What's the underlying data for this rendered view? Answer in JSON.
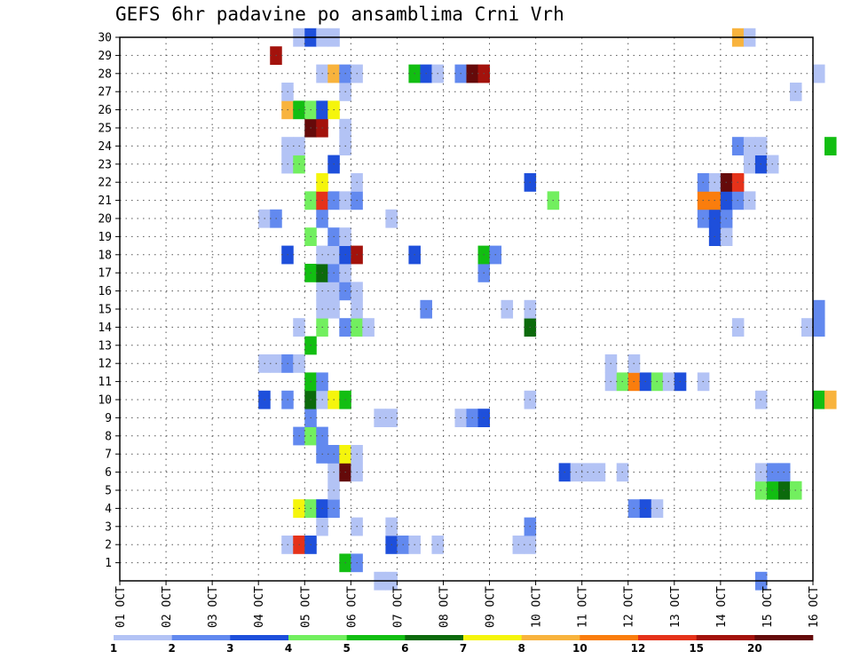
{
  "chart_data": {
    "type": "heatmap",
    "title": "GEFS 6hr padavine po ansamblima Crni Vrh",
    "xlabel": "",
    "ylabel": "",
    "x_ticks": [
      "01 OCT",
      "02 OCT",
      "03 OCT",
      "04 OCT",
      "05 OCT",
      "06 OCT",
      "07 OCT",
      "08 OCT",
      "09 OCT",
      "10 OCT",
      "11 OCT",
      "12 OCT",
      "13 OCT",
      "14 OCT",
      "15 OCT",
      "16 OCT"
    ],
    "y_ticks": [
      "1",
      "2",
      "3",
      "4",
      "5",
      "6",
      "7",
      "8",
      "9",
      "10",
      "11",
      "12",
      "13",
      "14",
      "15",
      "16",
      "17",
      "18",
      "19",
      "20",
      "21",
      "22",
      "23",
      "24",
      "25",
      "26",
      "27",
      "28",
      "29",
      "30"
    ],
    "x_range_days": [
      0,
      15
    ],
    "y_range": [
      0,
      30
    ],
    "time_step_hours": 6,
    "grid": true,
    "colorbar": {
      "labels": [
        "1",
        "2",
        "3",
        "4",
        "5",
        "6",
        "7",
        "8",
        "10",
        "12",
        "15",
        "20"
      ],
      "colors": [
        "#b3c3f5",
        "#6289ef",
        "#1e4fdb",
        "#72ef5f",
        "#12be12",
        "#0c6a0c",
        "#f5f50c",
        "#f8b33d",
        "#fa7d0d",
        "#e5321a",
        "#a3120c",
        "#650a0a"
      ]
    },
    "cells": [
      [
        3.5,
        2,
        1
      ],
      [
        3.75,
        2,
        10
      ],
      [
        4,
        2,
        3
      ],
      [
        5.75,
        2,
        3
      ],
      [
        6,
        2,
        2
      ],
      [
        6.25,
        2,
        1
      ],
      [
        6.75,
        2,
        1
      ],
      [
        8.5,
        2,
        1
      ],
      [
        8.75,
        2,
        1
      ],
      [
        4.75,
        1,
        5
      ],
      [
        5,
        1,
        2
      ],
      [
        5.5,
        0,
        1
      ],
      [
        5.75,
        0,
        1
      ],
      [
        13.75,
        0,
        2
      ],
      [
        4.25,
        3,
        1
      ],
      [
        5,
        3,
        1
      ],
      [
        5.75,
        3,
        1
      ],
      [
        8.75,
        3,
        2
      ],
      [
        3.75,
        4,
        7
      ],
      [
        4,
        4,
        4
      ],
      [
        4.25,
        4,
        3
      ],
      [
        4.5,
        4,
        2
      ],
      [
        11,
        4,
        2
      ],
      [
        11.25,
        4,
        3
      ],
      [
        11.5,
        4,
        1
      ],
      [
        4.5,
        5,
        1
      ],
      [
        13.75,
        5,
        4
      ],
      [
        14,
        5,
        5
      ],
      [
        14.25,
        5,
        6
      ],
      [
        14.5,
        5,
        4
      ],
      [
        4.5,
        6,
        1
      ],
      [
        4.75,
        6,
        12
      ],
      [
        5,
        6,
        1
      ],
      [
        9.5,
        6,
        3
      ],
      [
        9.75,
        6,
        1
      ],
      [
        10,
        6,
        1
      ],
      [
        10.25,
        6,
        1
      ],
      [
        10.75,
        6,
        1
      ],
      [
        13.75,
        6,
        1
      ],
      [
        14,
        6,
        2
      ],
      [
        14.25,
        6,
        2
      ],
      [
        4.25,
        7,
        2
      ],
      [
        4.5,
        7,
        2
      ],
      [
        4.75,
        7,
        7
      ],
      [
        5,
        7,
        1
      ],
      [
        3.75,
        8,
        2
      ],
      [
        4,
        8,
        4
      ],
      [
        4.25,
        8,
        2
      ],
      [
        4,
        9,
        2
      ],
      [
        5.5,
        9,
        1
      ],
      [
        5.75,
        9,
        1
      ],
      [
        7.25,
        9,
        1
      ],
      [
        7.5,
        9,
        2
      ],
      [
        7.75,
        9,
        3
      ],
      [
        3,
        10,
        3
      ],
      [
        3.5,
        10,
        2
      ],
      [
        4,
        10,
        6
      ],
      [
        4.25,
        10,
        1
      ],
      [
        4.5,
        10,
        7
      ],
      [
        4.75,
        10,
        5
      ],
      [
        8.75,
        10,
        1
      ],
      [
        13.75,
        10,
        1
      ],
      [
        15,
        10,
        5
      ],
      [
        15.25,
        10,
        8
      ],
      [
        4,
        11,
        5
      ],
      [
        4.25,
        11,
        2
      ],
      [
        10.5,
        11,
        1
      ],
      [
        10.75,
        11,
        4
      ],
      [
        11,
        11,
        9
      ],
      [
        11.25,
        11,
        3
      ],
      [
        11.5,
        11,
        4
      ],
      [
        11.75,
        11,
        1
      ],
      [
        12,
        11,
        3
      ],
      [
        12.5,
        11,
        1
      ],
      [
        3,
        12,
        1
      ],
      [
        3.25,
        12,
        1
      ],
      [
        3.5,
        12,
        2
      ],
      [
        3.75,
        12,
        1
      ],
      [
        10.5,
        12,
        1
      ],
      [
        11,
        12,
        1
      ],
      [
        4,
        13,
        5
      ],
      [
        3.75,
        14,
        1
      ],
      [
        4.25,
        14,
        4
      ],
      [
        4.75,
        14,
        2
      ],
      [
        5,
        14,
        4
      ],
      [
        5.25,
        14,
        1
      ],
      [
        8.75,
        14,
        6
      ],
      [
        13.25,
        14,
        1
      ],
      [
        14.75,
        14,
        1
      ],
      [
        15,
        14,
        2
      ],
      [
        4.25,
        15,
        1
      ],
      [
        4.5,
        15,
        1
      ],
      [
        5,
        15,
        1
      ],
      [
        6.5,
        15,
        2
      ],
      [
        8.25,
        15,
        1
      ],
      [
        8.75,
        15,
        1
      ],
      [
        15,
        15,
        2
      ],
      [
        4.25,
        16,
        1
      ],
      [
        4.5,
        16,
        1
      ],
      [
        4.75,
        16,
        2
      ],
      [
        5,
        16,
        1
      ],
      [
        4,
        17,
        5
      ],
      [
        4.25,
        17,
        6
      ],
      [
        4.5,
        17,
        2
      ],
      [
        4.75,
        17,
        1
      ],
      [
        7.75,
        17,
        2
      ],
      [
        3.5,
        18,
        3
      ],
      [
        4.25,
        18,
        1
      ],
      [
        4.5,
        18,
        1
      ],
      [
        4.75,
        18,
        3
      ],
      [
        5,
        18,
        11
      ],
      [
        6.25,
        18,
        3
      ],
      [
        7.75,
        18,
        5
      ],
      [
        8,
        18,
        2
      ],
      [
        4,
        19,
        4
      ],
      [
        4.5,
        19,
        2
      ],
      [
        4.75,
        19,
        1
      ],
      [
        12.75,
        19,
        3
      ],
      [
        13,
        19,
        1
      ],
      [
        3,
        20,
        1
      ],
      [
        3.25,
        20,
        2
      ],
      [
        4.25,
        20,
        2
      ],
      [
        5.75,
        20,
        1
      ],
      [
        12.5,
        20,
        2
      ],
      [
        12.75,
        20,
        3
      ],
      [
        13,
        20,
        2
      ],
      [
        4,
        21,
        4
      ],
      [
        4.25,
        21,
        10
      ],
      [
        4.5,
        21,
        2
      ],
      [
        4.75,
        21,
        1
      ],
      [
        5,
        21,
        2
      ],
      [
        9.25,
        21,
        4
      ],
      [
        12.5,
        21,
        9
      ],
      [
        12.75,
        21,
        9
      ],
      [
        13,
        21,
        3
      ],
      [
        13.25,
        21,
        2
      ],
      [
        13.5,
        21,
        1
      ],
      [
        4.25,
        22,
        7
      ],
      [
        5,
        22,
        1
      ],
      [
        8.75,
        22,
        3
      ],
      [
        12.5,
        22,
        2
      ],
      [
        12.75,
        22,
        1
      ],
      [
        13,
        22,
        12
      ],
      [
        13.25,
        22,
        10
      ],
      [
        3.5,
        23,
        1
      ],
      [
        3.75,
        23,
        4
      ],
      [
        4.5,
        23,
        3
      ],
      [
        13.5,
        23,
        1
      ],
      [
        13.75,
        23,
        3
      ],
      [
        14,
        23,
        1
      ],
      [
        3.5,
        24,
        1
      ],
      [
        3.75,
        24,
        1
      ],
      [
        4.75,
        24,
        1
      ],
      [
        13.25,
        24,
        2
      ],
      [
        13.5,
        24,
        1
      ],
      [
        13.75,
        24,
        1
      ],
      [
        15.25,
        24,
        5
      ],
      [
        4,
        25,
        12
      ],
      [
        4.25,
        25,
        11
      ],
      [
        4.75,
        25,
        1
      ],
      [
        3.5,
        26,
        8
      ],
      [
        3.75,
        26,
        5
      ],
      [
        4,
        26,
        4
      ],
      [
        4.25,
        26,
        3
      ],
      [
        4.5,
        26,
        7
      ],
      [
        3.5,
        27,
        1
      ],
      [
        4.75,
        27,
        1
      ],
      [
        14.5,
        27,
        1
      ],
      [
        4.25,
        28,
        1
      ],
      [
        4.5,
        28,
        8
      ],
      [
        4.75,
        28,
        2
      ],
      [
        5,
        28,
        1
      ],
      [
        6.25,
        28,
        5
      ],
      [
        6.5,
        28,
        3
      ],
      [
        6.75,
        28,
        1
      ],
      [
        7.25,
        28,
        2
      ],
      [
        7.5,
        28,
        12
      ],
      [
        7.75,
        28,
        11
      ],
      [
        15,
        28,
        1
      ],
      [
        3.25,
        29,
        11
      ],
      [
        3.75,
        30,
        1
      ],
      [
        4,
        30,
        3
      ],
      [
        4.25,
        30,
        1
      ],
      [
        4.5,
        30,
        1
      ],
      [
        13.25,
        30,
        8
      ],
      [
        13.5,
        30,
        1
      ]
    ]
  }
}
